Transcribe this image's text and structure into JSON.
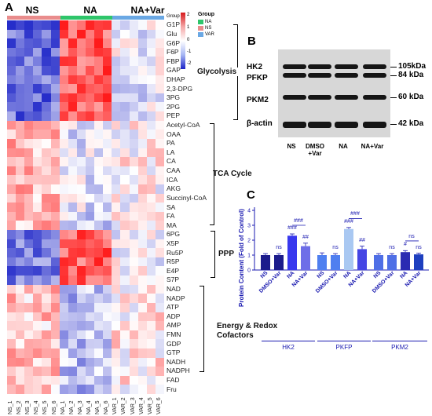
{
  "panel_a": {
    "letter": "A",
    "groups": [
      "NS",
      "NA",
      "NA+Var"
    ],
    "group_colors": [
      "#e98c8c",
      "#2ec56a",
      "#6aa8e4"
    ],
    "legend": {
      "scale_max": "2",
      "scale_mid": "1",
      "scale_zero": "0",
      "scale_m1": "-1",
      "scale_min": "-2",
      "group_title": "Group",
      "group_bar_label": "Group",
      "items": [
        {
          "label": "NA",
          "color": "#2ec56a"
        },
        {
          "label": "NS",
          "color": "#e98c8c"
        },
        {
          "label": "VAR",
          "color": "#6aa8e4"
        }
      ]
    },
    "rows": [
      "G1P",
      "Glu",
      "G6P",
      "F6P",
      "FBP",
      "GAP",
      "DHAP",
      "2,3-DPG",
      "3PG",
      "2PG",
      "PEP",
      "Acetyl-CoA",
      "OAA",
      "PA",
      "LA",
      "CA",
      "CAA",
      "ICA",
      "AKG",
      "Succinyl-CoA",
      "SA",
      "FA",
      "MA",
      "6PG",
      "X5P",
      "Ru5P",
      "R5P",
      "E4P",
      "S7P",
      "NAD",
      "NADP",
      "ATP",
      "ADP",
      "AMP",
      "FMN",
      "GDP",
      "GTP",
      "NADH",
      "NADPH",
      "FAD",
      "Fru"
    ],
    "columns": [
      "NS_1",
      "NS_2",
      "NS_3",
      "NS_4",
      "NS_5",
      "NS_6",
      "NA_1",
      "NA_2",
      "NA_3",
      "NA_4",
      "NA_5",
      "NA_6",
      "VAR_1",
      "VAR_2",
      "VAR_3",
      "VAR_4",
      "VAR_5",
      "VAR_6"
    ],
    "pathways": [
      "Glycolysis",
      "TCA Cycle",
      "PPP",
      "Energy & Redox\nCofactors"
    ]
  },
  "panel_b": {
    "letter": "B",
    "proteins": [
      "HK2",
      "PFKP",
      "PKM2",
      "β-actin"
    ],
    "sizes": [
      "105kDa",
      "84 kDa",
      "60 kDa",
      "42 kDa"
    ],
    "lanes": [
      "NS",
      "DMSO\n+Var",
      "NA",
      "NA+Var"
    ]
  },
  "panel_c": {
    "letter": "C",
    "ylabel": "Protein Content (Fold of Control)",
    "sig_over_vehicle": [
      "ns",
      "###",
      "ns",
      "###",
      "ns",
      "#",
      "ns"
    ],
    "sig_on_treated": [
      "##",
      "##",
      "##"
    ],
    "sig_between": [
      "###",
      "###",
      "ns"
    ],
    "proteins": [
      "HK2",
      "PKFP",
      "PKM2"
    ],
    "sig_labels": {
      "hk2_dmso": "ns",
      "hk2_na": "###",
      "hk2_navar": "##",
      "hk2_bracket": "###",
      "pfkp_dmso": "ns",
      "pfkp_na": "###",
      "pfkp_navar": "##",
      "pfkp_bracket": "###",
      "pkm2_dmso": "ns",
      "pkm2_na": "#",
      "pkm2_navar": "ns",
      "pkm2_bracket": "ns"
    }
  },
  "chart_data": {
    "type": "bar",
    "ylabel": "Protein Content (Fold of Control)",
    "ylim": [
      0,
      4
    ],
    "yticks": [
      0,
      1,
      2,
      3,
      4
    ],
    "categories": [
      "NS",
      "DMSO+Var",
      "NA",
      "NA+Var",
      "NS",
      "DMSO+Var",
      "NA",
      "NA+Var",
      "NS",
      "DMSO+Var",
      "NA",
      "NA+Var"
    ],
    "groups": [
      "HK2",
      "PKFP",
      "PKM2"
    ],
    "values": [
      1.0,
      1.0,
      2.3,
      1.6,
      1.0,
      1.0,
      2.75,
      1.4,
      1.0,
      1.0,
      1.2,
      1.05
    ],
    "errors": [
      0.1,
      0.1,
      0.12,
      0.2,
      0.15,
      0.1,
      0.1,
      0.2,
      0.1,
      0.1,
      0.1,
      0.08
    ],
    "colors": [
      "#1c1c8c",
      "#1c1c8c",
      "#3838ee",
      "#6e6ee8",
      "#4f7ff0",
      "#4f7ff0",
      "#a9c8f2",
      "#4545e4",
      "#4f6fe6",
      "#4f6fe6",
      "#2b2bb2",
      "#1e3fbf"
    ]
  }
}
